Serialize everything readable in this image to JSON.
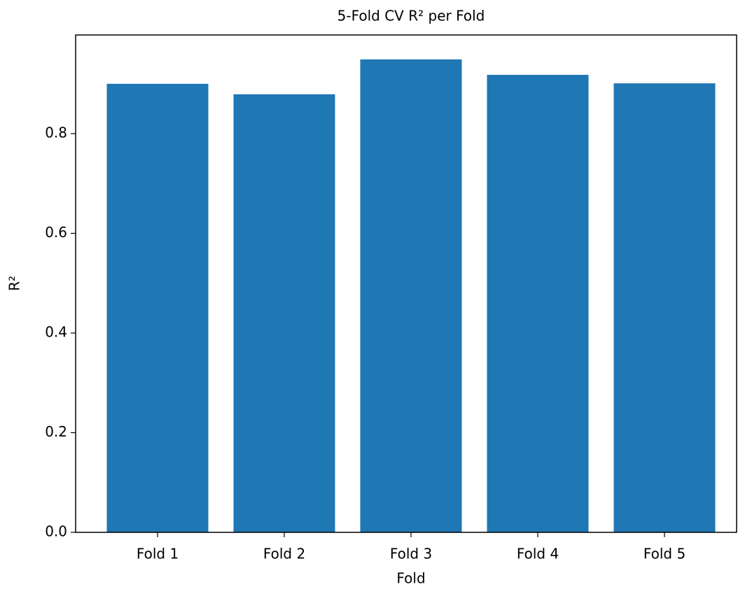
{
  "chart_data": {
    "type": "bar",
    "title": "5-Fold CV R² per Fold",
    "xlabel": "Fold",
    "ylabel": "R²",
    "categories": [
      "Fold 1",
      "Fold 2",
      "Fold 3",
      "Fold 4",
      "Fold 5"
    ],
    "values": [
      0.9,
      0.879,
      0.949,
      0.918,
      0.901
    ],
    "color": "#1f77b4",
    "ylim": [
      0,
      0.998
    ],
    "yticks": [
      {
        "value": 0,
        "label": "0.0"
      },
      0.2,
      0.4,
      0.6,
      0.8
    ]
  }
}
